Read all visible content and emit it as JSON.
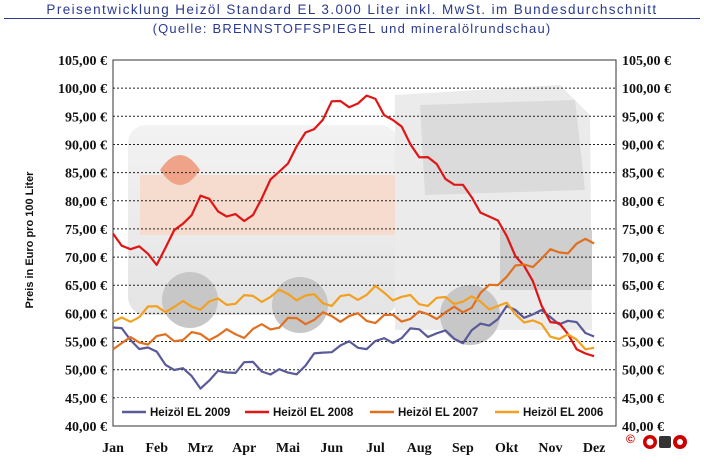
{
  "header": {
    "title": "Preisentwicklung Heizöl Standard EL 3.000 Liter inkl. MwSt. im Bundesdurchschnitt",
    "subtitle": "(Quelle: BRENNSTOFFSPIEGEL und mineralölrundschau)"
  },
  "footer": {
    "copyright": "©"
  },
  "chart_data": {
    "type": "line",
    "ylabel": "Preis in Euro pro 100 Liter",
    "ylim": [
      40,
      105
    ],
    "y_ticks": [
      "40,00 €",
      "45,00 €",
      "50,00 €",
      "55,00 €",
      "60,00 €",
      "65,00 €",
      "70,00 €",
      "75,00 €",
      "80,00 €",
      "85,00 €",
      "90,00 €",
      "95,00 €",
      "100,00 €",
      "105,00 €"
    ],
    "categories": [
      "Jan",
      "Feb",
      "Mrz",
      "Apr",
      "Mai",
      "Jun",
      "Jul",
      "Aug",
      "Sep",
      "Okt",
      "Nov",
      "Dez"
    ],
    "grid": true,
    "legend_position": "bottom",
    "series": [
      {
        "name": "Heizöl EL 2009",
        "color": "#5a5a9a",
        "values": [
          57.5,
          52.5,
          47.5,
          51.0,
          49.0,
          54.0,
          54.5,
          57.0,
          55.5,
          60.5,
          59.5,
          56.5
        ]
      },
      {
        "name": "Heizöl EL 2008",
        "color": "#e01515",
        "values": [
          73.5,
          69.5,
          80.5,
          76.0,
          87.5,
          97.0,
          98.0,
          88.5,
          82.0,
          74.0,
          59.0,
          51.5
        ]
      },
      {
        "name": "Heizöl EL 2007",
        "color": "#e07020",
        "values": [
          54.5,
          55.5,
          56.0,
          56.5,
          58.5,
          59.5,
          59.0,
          59.5,
          60.5,
          67.0,
          70.5,
          73.0
        ]
      },
      {
        "name": "Heizöl EL 2006",
        "color": "#f2a020",
        "values": [
          58.0,
          61.0,
          61.5,
          62.5,
          63.5,
          62.0,
          64.0,
          62.0,
          62.5,
          61.0,
          56.5,
          54.0
        ]
      }
    ]
  }
}
